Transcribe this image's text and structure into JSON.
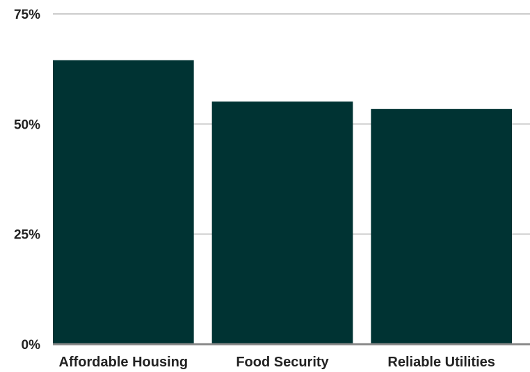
{
  "chart_data": {
    "type": "bar",
    "categories": [
      "Affordable Housing",
      "Food Security",
      "Reliable Utilities"
    ],
    "values": [
      64.5,
      55.1,
      53.4
    ],
    "y_ticks": [
      0,
      25,
      50,
      75
    ],
    "y_tick_labels": [
      "0%",
      "25%",
      "50%",
      "75%"
    ],
    "ylim": [
      0,
      75
    ],
    "grid": true,
    "legend": "none",
    "colors": {
      "bar": "#003333",
      "grid": "#cccccc",
      "baseline": "#888888",
      "text": "#222222"
    }
  }
}
